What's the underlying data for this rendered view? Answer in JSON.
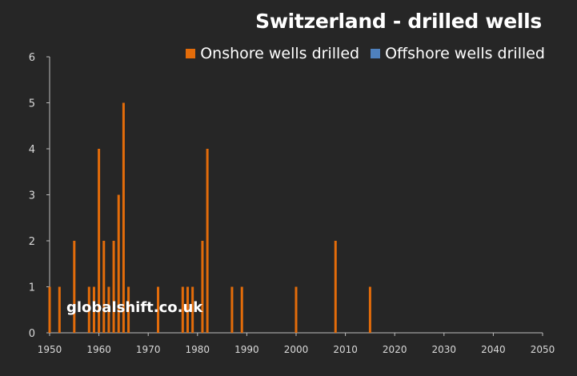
{
  "chart_data": {
    "type": "bar",
    "title": "Switzerland - drilled wells",
    "xlabel": "",
    "ylabel": "",
    "xlim": [
      1950,
      2050
    ],
    "ylim": [
      0,
      6
    ],
    "xticks": [
      "1950",
      "1960",
      "1970",
      "1980",
      "1990",
      "2000",
      "2010",
      "2020",
      "2030",
      "2040",
      "2050"
    ],
    "yticks": [
      "0",
      "1",
      "2",
      "3",
      "4",
      "5",
      "6"
    ],
    "legend_position": "top-right",
    "colors": {
      "onshore": "#e36c0a",
      "offshore": "#4f81bd",
      "background": "#262626"
    },
    "series": [
      {
        "name": "Onshore wells drilled",
        "points": [
          {
            "x": 1950,
            "y": 1
          },
          {
            "x": 1952,
            "y": 1
          },
          {
            "x": 1955,
            "y": 2
          },
          {
            "x": 1958,
            "y": 1
          },
          {
            "x": 1959,
            "y": 1
          },
          {
            "x": 1960,
            "y": 4
          },
          {
            "x": 1961,
            "y": 2
          },
          {
            "x": 1962,
            "y": 1
          },
          {
            "x": 1963,
            "y": 2
          },
          {
            "x": 1964,
            "y": 3
          },
          {
            "x": 1965,
            "y": 5
          },
          {
            "x": 1966,
            "y": 1
          },
          {
            "x": 1972,
            "y": 1
          },
          {
            "x": 1977,
            "y": 1
          },
          {
            "x": 1978,
            "y": 1
          },
          {
            "x": 1979,
            "y": 1
          },
          {
            "x": 1981,
            "y": 2
          },
          {
            "x": 1982,
            "y": 4
          },
          {
            "x": 1987,
            "y": 1
          },
          {
            "x": 1989,
            "y": 1
          },
          {
            "x": 2000,
            "y": 1
          },
          {
            "x": 2008,
            "y": 2
          },
          {
            "x": 2015,
            "y": 1
          }
        ]
      },
      {
        "name": "Offshore wells drilled",
        "points": []
      }
    ]
  },
  "watermark": "globalshift.co.uk"
}
